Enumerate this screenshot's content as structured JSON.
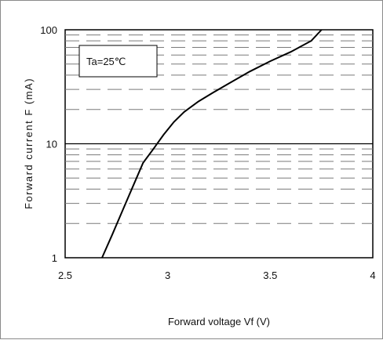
{
  "chart_data": {
    "type": "line",
    "title": "",
    "xlabel": "Forward voltage Vf (V)",
    "ylabel": "Forward current F (mA)",
    "xlim": [
      2.5,
      4
    ],
    "ylim": [
      1,
      100
    ],
    "yscale": "log",
    "x_ticks": [
      "2.5",
      "3",
      "3.5",
      "4"
    ],
    "y_ticks": [
      "1",
      "10",
      "100"
    ],
    "grid": "dashed minor horizontal lines, solid line at decades",
    "annotation": "Ta=25℃",
    "series": [
      {
        "x": [
          2.68,
          2.73,
          2.78,
          2.83,
          2.88,
          2.93,
          2.98,
          3.03,
          3.08,
          3.15,
          3.22,
          3.3,
          3.4,
          3.5,
          3.6,
          3.7,
          3.75
        ],
        "y": [
          1.0,
          1.6,
          2.6,
          4.2,
          6.8,
          9.0,
          12.0,
          15.5,
          19.0,
          23.5,
          28.0,
          34.0,
          43.0,
          53.0,
          64.0,
          80.0,
          100.0
        ]
      }
    ]
  }
}
